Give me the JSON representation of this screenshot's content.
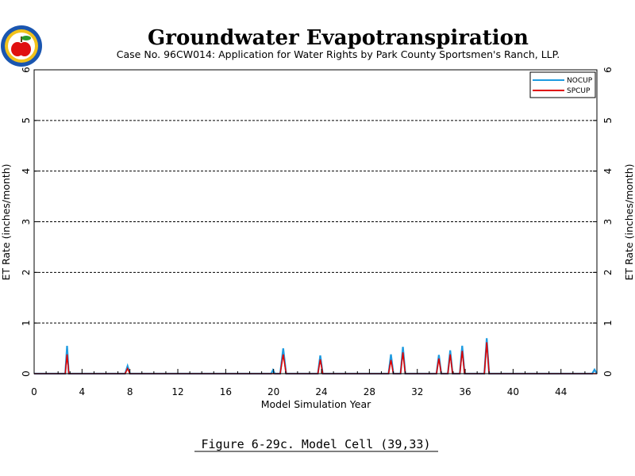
{
  "chart_data": {
    "type": "line",
    "title": "Groundwater Evapotranspiration",
    "subtitle": "Case No. 96CW014: Application for Water Rights by Park County Sportsmen's Ranch, LLP.",
    "xlabel": "Model Simulation Year",
    "ylabel": "ET Rate (inches/month)",
    "xlim": [
      0,
      47
    ],
    "ylim": [
      0,
      6
    ],
    "x_ticks": [
      "0",
      "4",
      "8",
      "12",
      "16",
      "20",
      "24",
      "28",
      "32",
      "36",
      "40",
      "44"
    ],
    "y_ticks": [
      "0",
      "1",
      "2",
      "3",
      "4",
      "5",
      "6"
    ],
    "grid": "horizontal-dashed",
    "legend_position": "top-right",
    "series": [
      {
        "name": "NOCUP",
        "color": "#1e9be0",
        "x": [
          0,
          2.6,
          2.75,
          2.9,
          3.1,
          7.6,
          7.8,
          8.0,
          19.8,
          19.95,
          20.1,
          20.55,
          20.8,
          21.05,
          23.7,
          23.9,
          24.1,
          29.6,
          29.8,
          30.0,
          30.6,
          30.8,
          31.0,
          33.6,
          33.8,
          34.0,
          34.55,
          34.75,
          34.95,
          35.55,
          35.75,
          35.95,
          37.6,
          37.8,
          38.0,
          46.6,
          46.8,
          47.0
        ],
        "y": [
          0,
          0,
          0.55,
          0,
          0,
          0,
          0.15,
          0,
          0,
          0.07,
          0,
          0,
          0.5,
          0,
          0,
          0.36,
          0,
          0,
          0.38,
          0,
          0,
          0.53,
          0,
          0,
          0.37,
          0,
          0,
          0.46,
          0,
          0,
          0.55,
          0,
          0,
          0.7,
          0,
          0,
          0.08,
          0
        ]
      },
      {
        "name": "SPCUP",
        "color": "#e00000",
        "x": [
          0,
          2.6,
          2.75,
          2.9,
          3.1,
          7.6,
          7.8,
          8.0,
          20.55,
          20.8,
          21.05,
          23.7,
          23.9,
          24.1,
          29.6,
          29.8,
          30.0,
          30.6,
          30.8,
          31.0,
          33.6,
          33.8,
          34.0,
          34.55,
          34.75,
          34.95,
          35.55,
          35.75,
          35.95,
          37.6,
          37.8,
          38.0,
          47.0
        ],
        "y": [
          0,
          0,
          0.38,
          0,
          0,
          0,
          0.1,
          0,
          0,
          0.38,
          0,
          0,
          0.28,
          0,
          0,
          0.27,
          0,
          0,
          0.42,
          0,
          0,
          0.3,
          0,
          0,
          0.38,
          0,
          0,
          0.45,
          0,
          0,
          0.62,
          0,
          0
        ]
      }
    ]
  },
  "figure_caption": "Figure 6-29c.  Model Cell (39,33)",
  "logo": {
    "name": "colorado-apple-seal"
  }
}
